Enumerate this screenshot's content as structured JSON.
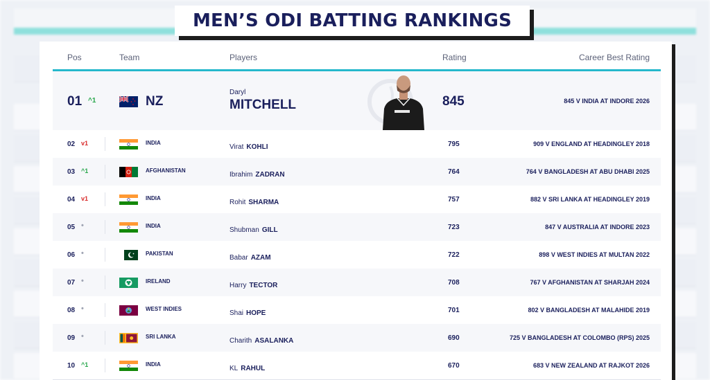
{
  "title": "MEN’S ODI BATTING RANKINGS",
  "background_header": {
    "pos": "Pos",
    "team": "Team",
    "career_best": "Career Best Rating"
  },
  "columns": {
    "pos": "Pos",
    "team": "Team",
    "players": "Players",
    "rating": "Rating",
    "career_best": "Career Best Rating"
  },
  "colors": {
    "accent": "#26b8cc",
    "navy": "#1a1f5c",
    "up": "#26a64a",
    "down": "#d92b2b"
  },
  "top": {
    "pos": "01",
    "change": "^1",
    "change_dir": "up",
    "team": "NZ",
    "flag": "new-zealand-flag",
    "first_name": "Daryl",
    "last_name": "MITCHELL",
    "rating": "845",
    "career_best": "845 V INDIA AT INDORE 2026"
  },
  "rows": [
    {
      "pos": "02",
      "change": "v1",
      "change_dir": "down",
      "team": "INDIA",
      "flag": "india-flag",
      "first": "Virat",
      "last": "KOHLI",
      "rating": "795",
      "career_best": "909 V ENGLAND AT HEADINGLEY 2018"
    },
    {
      "pos": "03",
      "change": "^1",
      "change_dir": "up",
      "team": "AFGHANISTAN",
      "flag": "afghanistan-flag",
      "first": "Ibrahim",
      "last": "ZADRAN",
      "rating": "764",
      "career_best": "764 V BANGLADESH AT ABU DHABI 2025"
    },
    {
      "pos": "04",
      "change": "v1",
      "change_dir": "down",
      "team": "INDIA",
      "flag": "india-flag",
      "first": "Rohit",
      "last": "SHARMA",
      "rating": "757",
      "career_best": "882 V SRI LANKA AT HEADINGLEY 2019"
    },
    {
      "pos": "05",
      "change": "•",
      "change_dir": "same",
      "team": "INDIA",
      "flag": "india-flag",
      "first": "Shubman",
      "last": "GILL",
      "rating": "723",
      "career_best": "847 V AUSTRALIA AT INDORE 2023"
    },
    {
      "pos": "06",
      "change": "•",
      "change_dir": "same",
      "team": "PAKISTAN",
      "flag": "pakistan-flag",
      "first": "Babar",
      "last": "AZAM",
      "rating": "722",
      "career_best": "898 V WEST INDIES AT MULTAN 2022"
    },
    {
      "pos": "07",
      "change": "•",
      "change_dir": "same",
      "team": "IRELAND",
      "flag": "ireland-flag",
      "first": "Harry",
      "last": "TECTOR",
      "rating": "708",
      "career_best": "767 V AFGHANISTAN AT SHARJAH 2024"
    },
    {
      "pos": "08",
      "change": "•",
      "change_dir": "same",
      "team": "WEST INDIES",
      "flag": "west-indies-flag",
      "first": "Shai",
      "last": "HOPE",
      "rating": "701",
      "career_best": "802 V BANGLADESH AT MALAHIDE 2019"
    },
    {
      "pos": "09",
      "change": "•",
      "change_dir": "same",
      "team": "SRI LANKA",
      "flag": "sri-lanka-flag",
      "first": "Charith",
      "last": "ASALANKA",
      "rating": "690",
      "career_best": "725 V BANGLADESH AT COLOMBO (RPS) 2025"
    },
    {
      "pos": "10",
      "change": "^1",
      "change_dir": "up",
      "team": "INDIA",
      "flag": "india-flag",
      "first": "KL",
      "last": "RAHUL",
      "rating": "670",
      "career_best": "683 V NEW ZEALAND AT RAJKOT 2026"
    }
  ]
}
